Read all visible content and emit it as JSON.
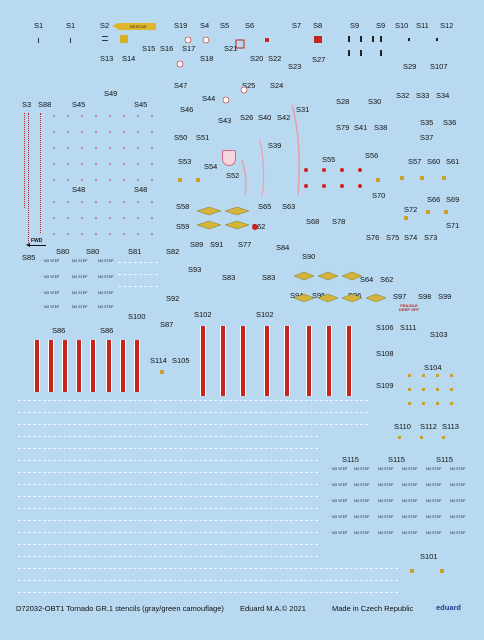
{
  "title": "D72032-OBT1 Tornado GR.1 stencils (gray/green camouflage)",
  "copyright": "Eduard M.A.© 2021",
  "made_in": "Made in Czech Republic",
  "brand": "eduard",
  "stencil_texts": {
    "rescue": "RESCUE",
    "fwd": "FWD",
    "no_step": "NO STEP",
    "fragile": "FRAGILE\nKEEP OFF"
  },
  "decal_labels": [
    "S1",
    "S1",
    "S2",
    "S19",
    "S4",
    "S5",
    "S6",
    "S7",
    "S8",
    "S9",
    "S10",
    "S11",
    "S12",
    "S15",
    "S16",
    "S17",
    "S18",
    "S21",
    "S20",
    "S22",
    "S23",
    "S27",
    "S13",
    "S14",
    "S29",
    "S107",
    "S47",
    "S44",
    "S25",
    "S24",
    "S49",
    "S28",
    "S30",
    "S32",
    "S33",
    "S34",
    "S3",
    "S88",
    "S45",
    "S45",
    "S46",
    "S31",
    "S43",
    "S26",
    "S40",
    "S42",
    "S35",
    "S36",
    "S79",
    "S41",
    "S38",
    "S50",
    "S51",
    "S39",
    "S37",
    "S56",
    "S53",
    "S54",
    "S55",
    "S57",
    "S60",
    "S61",
    "S52",
    "S48",
    "S48",
    "S70",
    "S66",
    "S69",
    "S58",
    "S65",
    "S63",
    "S72",
    "S68",
    "S78",
    "S71",
    "S59",
    "S62",
    "S76",
    "S75",
    "S74",
    "S73",
    "S80",
    "S80",
    "S81",
    "S82",
    "S89",
    "S91",
    "S77",
    "S84",
    "S85",
    "S90",
    "S93",
    "S83",
    "S83",
    "S64",
    "S62",
    "S92",
    "S94",
    "S95",
    "S96",
    "S97",
    "S98",
    "S99",
    "S86",
    "S86",
    "S100",
    "S87",
    "S102",
    "S102",
    "S106",
    "S111",
    "S103",
    "S108",
    "S114",
    "S105",
    "S104",
    "S109",
    "S110",
    "S112",
    "S113",
    "S115",
    "S115",
    "S115",
    "S101"
  ]
}
